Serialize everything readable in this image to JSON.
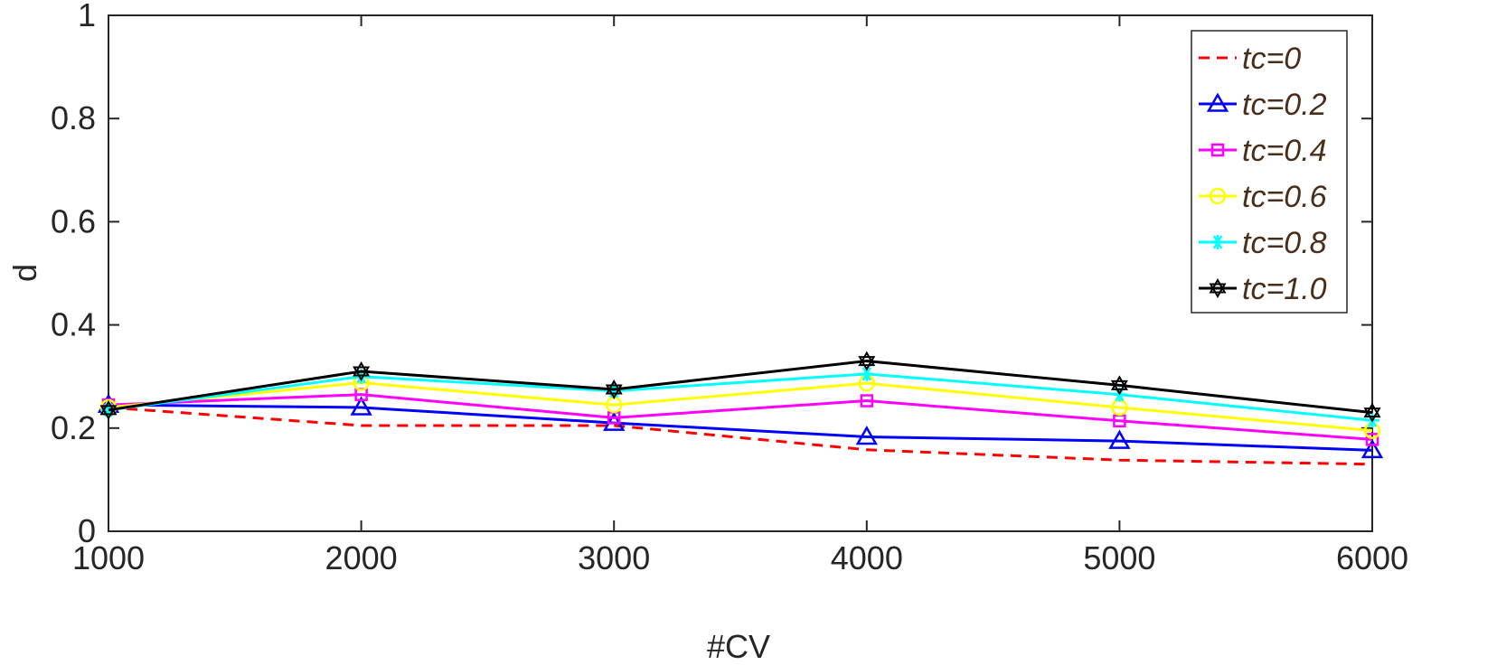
{
  "chart_data": {
    "type": "line",
    "xlabel": "#CV",
    "ylabel": "d",
    "xlim": [
      1000,
      6000
    ],
    "ylim": [
      0,
      1
    ],
    "x": [
      1000,
      2000,
      3000,
      4000,
      5000,
      6000
    ],
    "xticks": [
      "1000",
      "2000",
      "3000",
      "4000",
      "5000",
      "6000"
    ],
    "yticks": [
      "0",
      "0.2",
      "0.4",
      "0.6",
      "0.8",
      "1"
    ],
    "grid": false,
    "legend_position": "top-right",
    "series": [
      {
        "name": "tc=0",
        "color": "#ff0000",
        "dash": "dashed",
        "marker": "none",
        "values": [
          0.24,
          0.205,
          0.205,
          0.158,
          0.138,
          0.13
        ]
      },
      {
        "name": "tc=0.2",
        "color": "#0000ff",
        "dash": "solid",
        "marker": "triangle",
        "values": [
          0.245,
          0.24,
          0.21,
          0.183,
          0.175,
          0.157
        ]
      },
      {
        "name": "tc=0.4",
        "color": "#ff00ff",
        "dash": "solid",
        "marker": "square",
        "values": [
          0.245,
          0.265,
          0.22,
          0.253,
          0.214,
          0.178
        ]
      },
      {
        "name": "tc=0.6",
        "color": "#ffff00",
        "dash": "solid",
        "marker": "circle",
        "values": [
          0.24,
          0.288,
          0.245,
          0.287,
          0.24,
          0.195
        ]
      },
      {
        "name": "tc=0.8",
        "color": "#00ffff",
        "dash": "solid",
        "marker": "asterisk",
        "values": [
          0.235,
          0.3,
          0.272,
          0.305,
          0.265,
          0.215
        ]
      },
      {
        "name": "tc=1.0",
        "color": "#000000",
        "dash": "solid",
        "marker": "hexagram",
        "values": [
          0.235,
          0.31,
          0.275,
          0.33,
          0.283,
          0.23
        ]
      }
    ]
  }
}
